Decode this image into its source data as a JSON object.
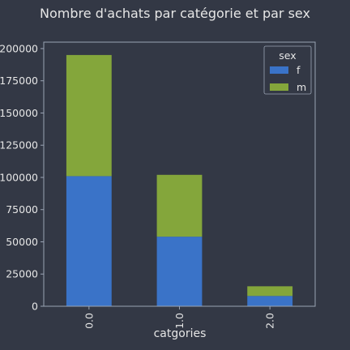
{
  "chart_data": {
    "type": "bar",
    "stacked": true,
    "title": "Nombre d'achats par catégorie et par sex",
    "xlabel": "catgories",
    "ylabel": "",
    "categories": [
      "0.0",
      "1.0",
      "2.0"
    ],
    "series": [
      {
        "name": "f",
        "values": [
          101000,
          54000,
          8000
        ],
        "color": "#3a73c8"
      },
      {
        "name": "m",
        "values": [
          94000,
          48000,
          7500
        ],
        "color": "#84a63b"
      }
    ],
    "ylim": [
      0,
      205000
    ],
    "yticks": [
      0,
      25000,
      50000,
      75000,
      100000,
      125000,
      150000,
      175000,
      200000
    ],
    "grid": false,
    "legend": {
      "title": "sex",
      "placement": "top-right"
    },
    "colors": {
      "background": "#333845",
      "axes_edge": "#9aa4b4",
      "text": "#e6e6e6"
    }
  }
}
